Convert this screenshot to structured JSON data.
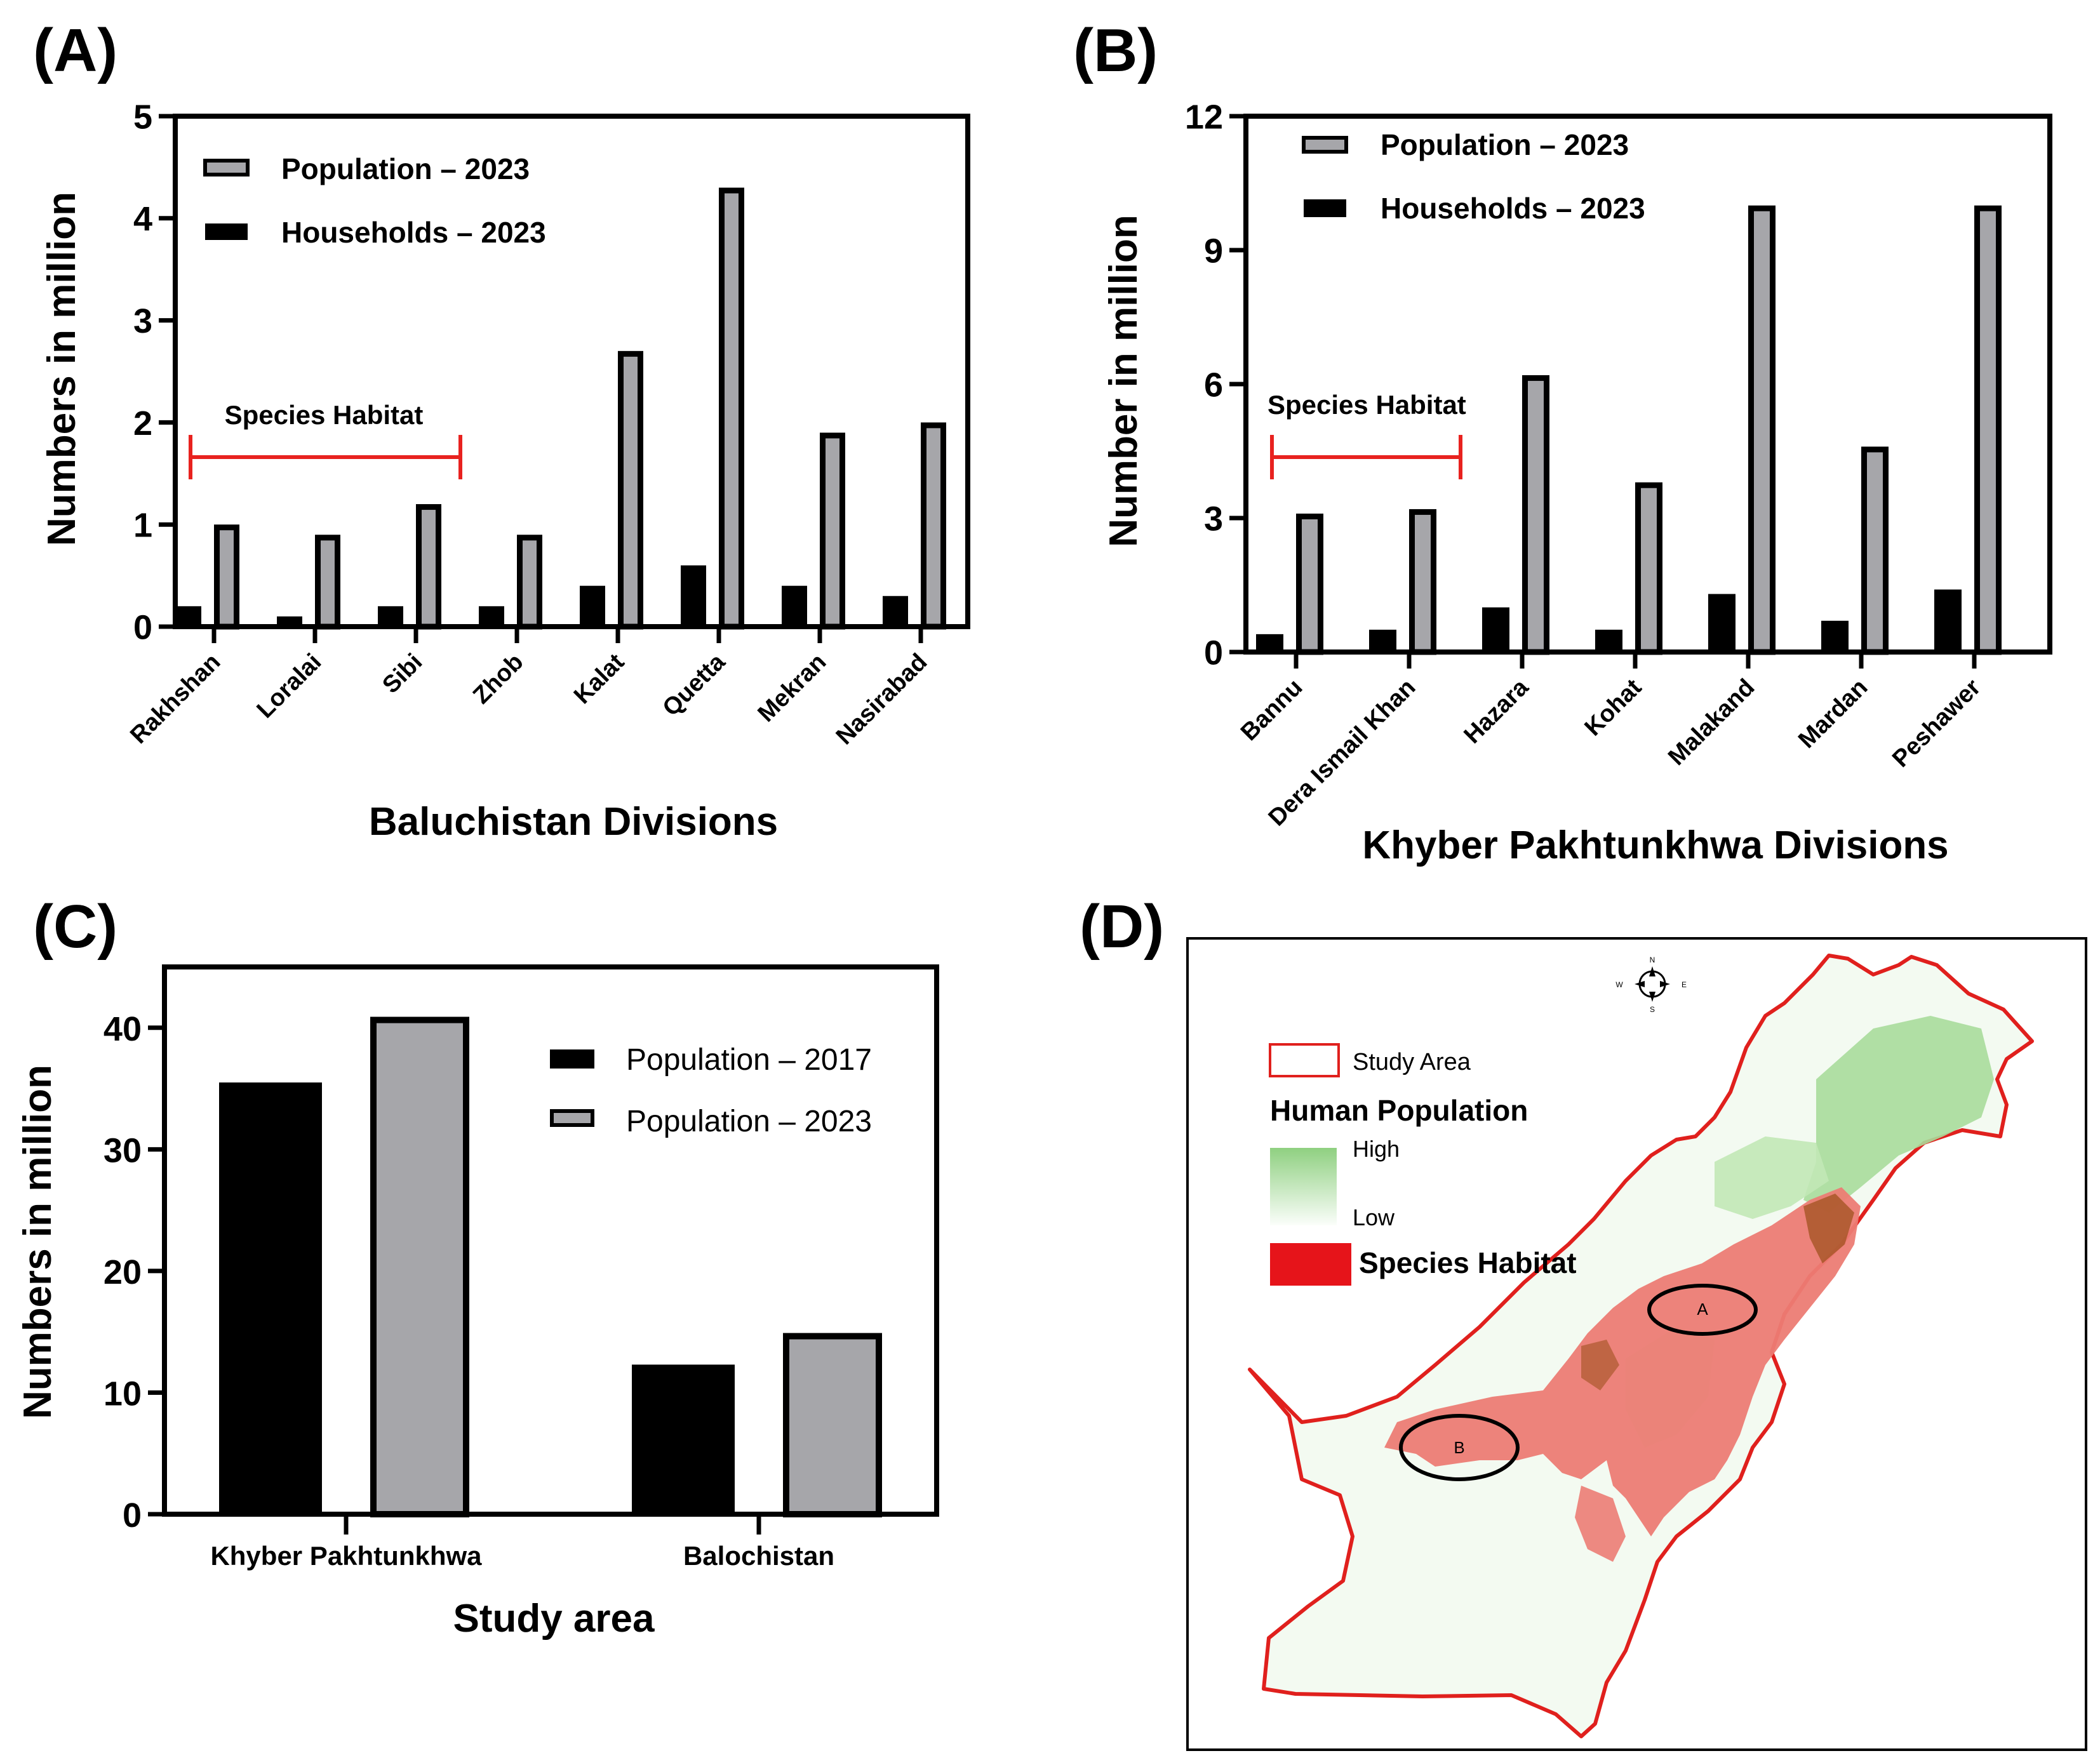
{
  "figure": {
    "colors": {
      "population": "#a6a6aa",
      "households": "#000000",
      "axis": "#000000",
      "bracket": "#e8221f",
      "habitat": "#e23b2f",
      "habitat_fill": "#ec7c74",
      "pop_high": "#8fd080",
      "pop_low": "#f4fbf2",
      "border": "#e0201d"
    }
  },
  "panel_a": {
    "label": "(A)",
    "annotation": "Species Habitat",
    "chart_data": {
      "type": "bar",
      "title": "",
      "xlabel": "Baluchistan Divisions",
      "ylabel": "Numbers in million",
      "ylim": [
        0,
        5
      ],
      "yticks": [
        "0",
        "1",
        "2",
        "3",
        "4",
        "5"
      ],
      "categories": [
        "Rakhshan",
        "Loralai",
        "Sibi",
        "Zhob",
        "Kalat",
        "Quetta",
        "Mekran",
        "Nasirabad"
      ],
      "series": [
        {
          "name": "Households – 2023",
          "values": [
            0.2,
            0.1,
            0.2,
            0.2,
            0.4,
            0.6,
            0.4,
            0.3
          ]
        },
        {
          "name": "Population – 2023",
          "values": [
            1.0,
            0.9,
            1.2,
            0.9,
            2.7,
            4.3,
            1.9,
            2.0
          ]
        }
      ],
      "legend": [
        "Population – 2023",
        "Households – 2023"
      ],
      "legend_position": "top-left",
      "habitat_span": [
        "Rakhshan",
        "Sibi"
      ]
    }
  },
  "panel_b": {
    "label": "(B)",
    "annotation": "Species Habitat",
    "chart_data": {
      "type": "bar",
      "title": "",
      "xlabel": "Khyber Pakhtunkhwa Divisions",
      "ylabel": "Number in million",
      "ylim": [
        0,
        12
      ],
      "yticks": [
        "0",
        "3",
        "6",
        "9",
        "12"
      ],
      "categories": [
        "Bannu",
        "Dera Ismail Khan",
        "Hazara",
        "Kohat",
        "Malakand",
        "Mardan",
        "Peshawer"
      ],
      "series": [
        {
          "name": "Households – 2023",
          "values": [
            0.4,
            0.5,
            1.0,
            0.5,
            1.3,
            0.7,
            1.4
          ]
        },
        {
          "name": "Population – 2023",
          "values": [
            3.1,
            3.2,
            6.2,
            3.8,
            10.0,
            4.6,
            10.0
          ]
        }
      ],
      "legend": [
        "Population – 2023",
        "Households – 2023"
      ],
      "legend_position": "top-left",
      "habitat_span": [
        "Bannu",
        "Dera Ismail Khan"
      ]
    }
  },
  "panel_c": {
    "label": "(C)",
    "chart_data": {
      "type": "bar",
      "title": "",
      "xlabel": "Study area",
      "ylabel": "Numbers in million",
      "ylim": [
        0,
        45
      ],
      "yticks": [
        "0",
        "10",
        "20",
        "30",
        "40"
      ],
      "categories": [
        "Khyber Pakhtunkhwa",
        "Balochistan"
      ],
      "series": [
        {
          "name": "Population – 2017",
          "values": [
            35.5,
            12.3
          ]
        },
        {
          "name": "Population – 2023",
          "values": [
            40.9,
            14.9
          ]
        }
      ],
      "legend": [
        "Population – 2017",
        "Population – 2023"
      ],
      "legend_position": "top-right"
    }
  },
  "panel_d": {
    "label": "(D)",
    "compass": {
      "n": "N",
      "s": "S",
      "e": "E",
      "w": "W"
    },
    "legend": {
      "study_area": "Study Area",
      "population_title": "Human Population",
      "high": "High",
      "low": "Low",
      "habitat": "Species Habitat"
    },
    "regions": [
      "A",
      "B"
    ]
  }
}
